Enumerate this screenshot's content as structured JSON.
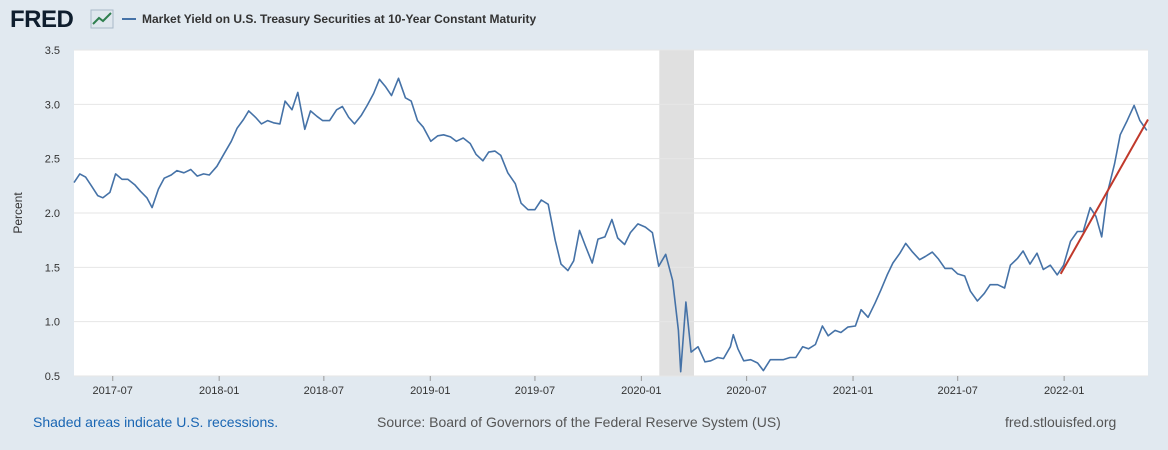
{
  "header": {
    "logo_text": "FRED",
    "legend_label": "Market Yield on U.S. Treasury Securities at 10-Year Constant Maturity"
  },
  "footer": {
    "recession_note": "Shaded areas indicate U.S. recessions.",
    "source": "Source: Board of Governors of the Federal Reserve System (US)",
    "site": "fred.stlouisfed.org"
  },
  "colors": {
    "series": "#4572a7",
    "trend": "#c0392b",
    "recession": "#e0e0e0",
    "background": "#e1e9f0"
  },
  "icons": [
    "fred-chart-icon"
  ],
  "chart_data": {
    "type": "line",
    "ylabel": "Percent",
    "xlabel": "",
    "ylim": [
      0.5,
      3.5
    ],
    "yticks": [
      "0.5",
      "1.0",
      "1.5",
      "2.0",
      "2.5",
      "3.0",
      "3.5"
    ],
    "xticks": [
      "2017-07",
      "2018-01",
      "2018-07",
      "2019-01",
      "2019-07",
      "2020-01",
      "2020-07",
      "2021-01",
      "2021-07",
      "2022-01"
    ],
    "grid": true,
    "recessions": [
      {
        "start": "2020-02",
        "end": "2020-04"
      }
    ],
    "series": [
      {
        "name": "Market Yield on U.S. Treasury Securities at 10-Year Constant Maturity",
        "points": [
          [
            "2017-04-25",
            2.28
          ],
          [
            "2017-05-05",
            2.36
          ],
          [
            "2017-05-15",
            2.33
          ],
          [
            "2017-05-25",
            2.25
          ],
          [
            "2017-06-05",
            2.16
          ],
          [
            "2017-06-14",
            2.14
          ],
          [
            "2017-06-26",
            2.19
          ],
          [
            "2017-07-06",
            2.36
          ],
          [
            "2017-07-17",
            2.31
          ],
          [
            "2017-07-27",
            2.31
          ],
          [
            "2017-08-08",
            2.26
          ],
          [
            "2017-08-18",
            2.2
          ],
          [
            "2017-08-29",
            2.14
          ],
          [
            "2017-09-07",
            2.05
          ],
          [
            "2017-09-18",
            2.22
          ],
          [
            "2017-09-28",
            2.32
          ],
          [
            "2017-10-10",
            2.35
          ],
          [
            "2017-10-20",
            2.39
          ],
          [
            "2017-11-01",
            2.37
          ],
          [
            "2017-11-13",
            2.4
          ],
          [
            "2017-11-24",
            2.34
          ],
          [
            "2017-12-05",
            2.36
          ],
          [
            "2017-12-15",
            2.35
          ],
          [
            "2017-12-28",
            2.43
          ],
          [
            "2018-01-10",
            2.55
          ],
          [
            "2018-01-22",
            2.66
          ],
          [
            "2018-02-01",
            2.78
          ],
          [
            "2018-02-12",
            2.86
          ],
          [
            "2018-02-21",
            2.94
          ],
          [
            "2018-03-05",
            2.88
          ],
          [
            "2018-03-15",
            2.82
          ],
          [
            "2018-03-26",
            2.85
          ],
          [
            "2018-04-05",
            2.83
          ],
          [
            "2018-04-16",
            2.82
          ],
          [
            "2018-04-25",
            3.03
          ],
          [
            "2018-05-07",
            2.95
          ],
          [
            "2018-05-17",
            3.11
          ],
          [
            "2018-05-29",
            2.77
          ],
          [
            "2018-06-08",
            2.94
          ],
          [
            "2018-06-19",
            2.89
          ],
          [
            "2018-06-29",
            2.85
          ],
          [
            "2018-07-11",
            2.85
          ],
          [
            "2018-07-23",
            2.95
          ],
          [
            "2018-08-02",
            2.98
          ],
          [
            "2018-08-13",
            2.88
          ],
          [
            "2018-08-23",
            2.82
          ],
          [
            "2018-09-04",
            2.9
          ],
          [
            "2018-09-14",
            2.99
          ],
          [
            "2018-09-25",
            3.1
          ],
          [
            "2018-10-05",
            3.23
          ],
          [
            "2018-10-16",
            3.16
          ],
          [
            "2018-10-26",
            3.08
          ],
          [
            "2018-11-07",
            3.24
          ],
          [
            "2018-11-19",
            3.06
          ],
          [
            "2018-11-29",
            3.03
          ],
          [
            "2018-12-10",
            2.85
          ],
          [
            "2018-12-20",
            2.79
          ],
          [
            "2019-01-02",
            2.66
          ],
          [
            "2019-01-14",
            2.71
          ],
          [
            "2019-01-24",
            2.72
          ],
          [
            "2019-02-05",
            2.7
          ],
          [
            "2019-02-15",
            2.66
          ],
          [
            "2019-02-27",
            2.69
          ],
          [
            "2019-03-11",
            2.64
          ],
          [
            "2019-03-21",
            2.54
          ],
          [
            "2019-04-02",
            2.48
          ],
          [
            "2019-04-12",
            2.56
          ],
          [
            "2019-04-23",
            2.57
          ],
          [
            "2019-05-03",
            2.53
          ],
          [
            "2019-05-15",
            2.37
          ],
          [
            "2019-05-28",
            2.27
          ],
          [
            "2019-06-07",
            2.09
          ],
          [
            "2019-06-19",
            2.03
          ],
          [
            "2019-07-01",
            2.03
          ],
          [
            "2019-07-12",
            2.12
          ],
          [
            "2019-07-24",
            2.08
          ],
          [
            "2019-08-05",
            1.75
          ],
          [
            "2019-08-15",
            1.53
          ],
          [
            "2019-08-27",
            1.47
          ],
          [
            "2019-09-06",
            1.56
          ],
          [
            "2019-09-16",
            1.84
          ],
          [
            "2019-09-26",
            1.7
          ],
          [
            "2019-10-08",
            1.54
          ],
          [
            "2019-10-18",
            1.76
          ],
          [
            "2019-10-30",
            1.78
          ],
          [
            "2019-11-11",
            1.94
          ],
          [
            "2019-11-21",
            1.77
          ],
          [
            "2019-12-03",
            1.71
          ],
          [
            "2019-12-13",
            1.82
          ],
          [
            "2019-12-26",
            1.9
          ],
          [
            "2020-01-08",
            1.87
          ],
          [
            "2020-01-20",
            1.82
          ],
          [
            "2020-01-31",
            1.51
          ],
          [
            "2020-02-12",
            1.62
          ],
          [
            "2020-02-24",
            1.38
          ],
          [
            "2020-03-05",
            0.92
          ],
          [
            "2020-03-09",
            0.54
          ],
          [
            "2020-03-18",
            1.18
          ],
          [
            "2020-03-27",
            0.72
          ],
          [
            "2020-04-08",
            0.77
          ],
          [
            "2020-04-20",
            0.63
          ],
          [
            "2020-04-30",
            0.64
          ],
          [
            "2020-05-12",
            0.67
          ],
          [
            "2020-05-22",
            0.66
          ],
          [
            "2020-06-03",
            0.77
          ],
          [
            "2020-06-08",
            0.88
          ],
          [
            "2020-06-16",
            0.75
          ],
          [
            "2020-06-26",
            0.64
          ],
          [
            "2020-07-08",
            0.65
          ],
          [
            "2020-07-20",
            0.62
          ],
          [
            "2020-07-30",
            0.55
          ],
          [
            "2020-08-11",
            0.65
          ],
          [
            "2020-08-21",
            0.65
          ],
          [
            "2020-09-02",
            0.65
          ],
          [
            "2020-09-14",
            0.67
          ],
          [
            "2020-09-24",
            0.67
          ],
          [
            "2020-10-06",
            0.77
          ],
          [
            "2020-10-16",
            0.75
          ],
          [
            "2020-10-28",
            0.79
          ],
          [
            "2020-11-09",
            0.96
          ],
          [
            "2020-11-19",
            0.87
          ],
          [
            "2020-12-01",
            0.92
          ],
          [
            "2020-12-11",
            0.9
          ],
          [
            "2020-12-23",
            0.95
          ],
          [
            "2021-01-05",
            0.96
          ],
          [
            "2021-01-15",
            1.11
          ],
          [
            "2021-01-27",
            1.04
          ],
          [
            "2021-02-08",
            1.17
          ],
          [
            "2021-02-18",
            1.29
          ],
          [
            "2021-03-01",
            1.43
          ],
          [
            "2021-03-11",
            1.54
          ],
          [
            "2021-03-23",
            1.63
          ],
          [
            "2021-04-02",
            1.72
          ],
          [
            "2021-04-14",
            1.64
          ],
          [
            "2021-04-26",
            1.57
          ],
          [
            "2021-05-06",
            1.6
          ],
          [
            "2021-05-18",
            1.64
          ],
          [
            "2021-05-28",
            1.58
          ],
          [
            "2021-06-09",
            1.49
          ],
          [
            "2021-06-21",
            1.49
          ],
          [
            "2021-07-01",
            1.44
          ],
          [
            "2021-07-13",
            1.42
          ],
          [
            "2021-07-23",
            1.28
          ],
          [
            "2021-08-04",
            1.19
          ],
          [
            "2021-08-16",
            1.26
          ],
          [
            "2021-08-26",
            1.34
          ],
          [
            "2021-09-08",
            1.34
          ],
          [
            "2021-09-20",
            1.31
          ],
          [
            "2021-09-30",
            1.52
          ],
          [
            "2021-10-12",
            1.58
          ],
          [
            "2021-10-22",
            1.65
          ],
          [
            "2021-11-03",
            1.53
          ],
          [
            "2021-11-15",
            1.63
          ],
          [
            "2021-11-26",
            1.48
          ],
          [
            "2021-12-08",
            1.52
          ],
          [
            "2021-12-20",
            1.43
          ],
          [
            "2021-12-31",
            1.52
          ],
          [
            "2022-01-12",
            1.74
          ],
          [
            "2022-01-24",
            1.83
          ],
          [
            "2022-02-03",
            1.83
          ],
          [
            "2022-02-15",
            2.05
          ],
          [
            "2022-02-25",
            1.97
          ],
          [
            "2022-03-07",
            1.78
          ],
          [
            "2022-03-17",
            2.19
          ],
          [
            "2022-03-29",
            2.45
          ],
          [
            "2022-04-08",
            2.72
          ],
          [
            "2022-04-20",
            2.85
          ],
          [
            "2022-05-02",
            2.99
          ],
          [
            "2022-05-12",
            2.85
          ],
          [
            "2022-05-24",
            2.76
          ]
        ]
      },
      {
        "name": "",
        "points": [
          [
            "2021-12-26",
            1.44
          ],
          [
            "2022-05-26",
            2.86
          ]
        ]
      }
    ]
  }
}
